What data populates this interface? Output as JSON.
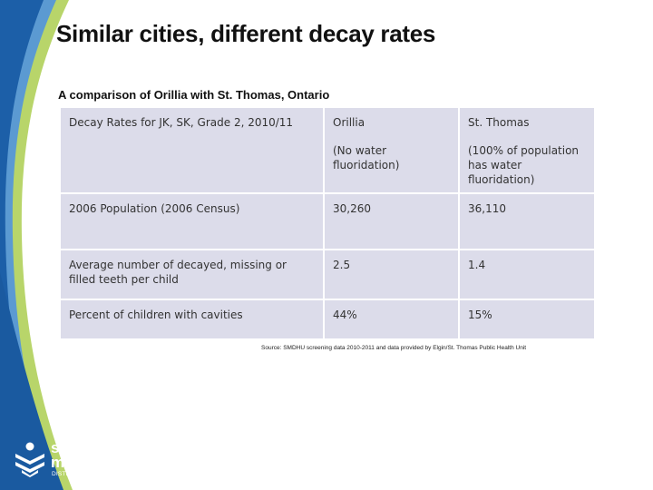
{
  "slide": {
    "title": "Similar cities, different decay rates",
    "subtitle": "A comparison of Orillia with St. Thomas, Ontario"
  },
  "table": {
    "header": {
      "label": "Decay Rates for JK, SK, Grade 2,  2010/11",
      "col1_name": "Orillia",
      "col1_note": "(No water fluoridation)",
      "col2_name": "St. Thomas",
      "col2_note": "(100% of population has water fluoridation)"
    },
    "rows": [
      {
        "label": "2006 Population (2006 Census)",
        "orillia": "30,260",
        "st_thomas": "36,110"
      },
      {
        "label": "Average number of decayed, missing or filled teeth per child",
        "orillia": "2.5",
        "st_thomas": "1.4"
      },
      {
        "label": "Percent of children with cavities",
        "orillia": "44%",
        "st_thomas": "15%"
      }
    ]
  },
  "source": "Source: SMDHU screening data 2010-2011 and data provided by Elgin/St. Thomas Public Health Unit",
  "logo": {
    "name_line1": "simcoe",
    "name_line2": "muskoka",
    "tagline": "DISTRICT HEALTH UNIT"
  },
  "colors": {
    "band_dark": "#1c5fa8",
    "band_light": "#5b9ad2",
    "band_green": "#b8d56a",
    "table_cell": "#dcdcea"
  }
}
